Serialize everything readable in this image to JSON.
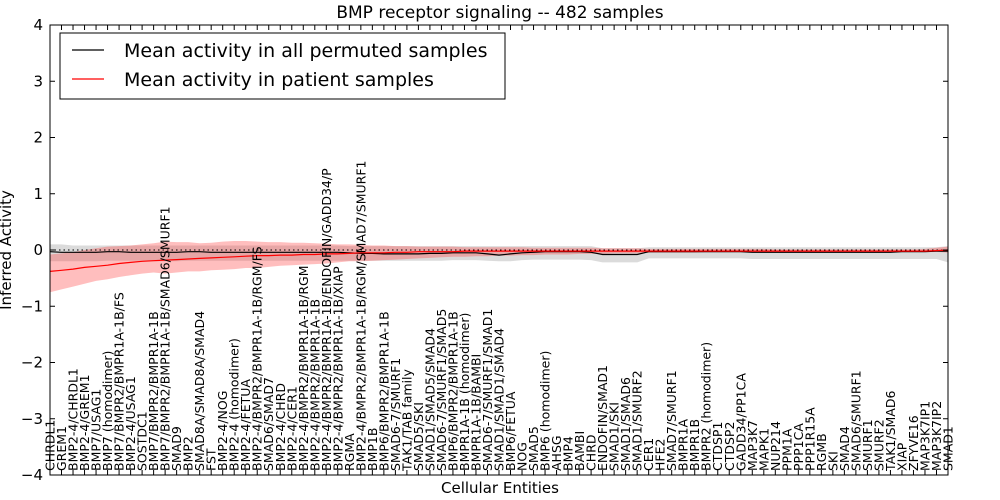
{
  "chart_data": {
    "type": "line",
    "title": "BMP receptor signaling -- 482 samples",
    "xlabel": "Cellular Entities",
    "ylabel": "Inferred Activity",
    "ylim": [
      -4,
      4
    ],
    "yticks": [
      -4,
      -3,
      -2,
      -1,
      0,
      1,
      2,
      3,
      4
    ],
    "legend_position": "top-left",
    "categories": [
      "CHRDL1",
      "GREM1",
      "BMP2-4/CHRDL1",
      "BMP2-4/GREM1",
      "BMP7/USAG1",
      "BMP7 (homodimer)",
      "BMP7/BMPR2/BMPR1A-1B/FS",
      "BMP2-4/USAG1",
      "SOSTDC1",
      "BMP7/BMPR2/BMPR1A-1B",
      "BMP7/BMPR2/BMPR1A-1B/SMAD6/SMURF1",
      "SMAD9",
      "BMP2",
      "SMAD8A/SMAD8A/SMAD4",
      "FST",
      "BMP2-4/NOG",
      "BMP2-4 (homodimer)",
      "BMP2-4/FETUA",
      "BMP2-4/BMPR2/BMPR1A-1B/RGM/FS",
      "SMAD6/SMAD7",
      "BMP2-4/CHRD",
      "BMP2-4/CER1",
      "BMP2-4/BMPR2/BMPR1A-1B/RGM",
      "BMP2-4/BMPR2/BMPR1A-1B",
      "BMP2-4/BMPR2/BMPR1A-1B/ENDOFIN/GADD34/P",
      "BMP2-4/BMPR2/BMPR1A-1B/XIAP",
      "RGMA",
      "BMP2-4/BMPR2/BMPR1A-1B/RGM/SMAD7/SMURF1",
      "BMP1B",
      "BMP6/BMPR2/BMPR1A-1B",
      "SMAD6-7/SMURF1",
      "TAK1/TAB family",
      "SMAD5/SKI",
      "SMAD1/SMAD5/SMAD4",
      "SMAD6-7/SMURF1/SMAD5",
      "BMP6/BMPR2/BMPR1A-1B",
      "BMPR1A-1B (homodimer)",
      "BMPR1A-1B/BAMBI",
      "SMAD6-7/SMURF1/SMAD1",
      "SMAD1/SMAD1/SMAD4",
      "BMP6/FETUA",
      "NOG",
      "SMAD5",
      "BMP6 (homodimer)",
      "AHSG",
      "BMP4",
      "BAMBI",
      "CHRD",
      "ENDOFIN/SMAD1",
      "SMAD1/SKI",
      "SMAD1/SMAD6",
      "SMAD1/SMURF2",
      "CER1",
      "HFE2",
      "SMAD7/SMURF1",
      "BMPR1A",
      "BMPR1B",
      "BMPR2 (homodimer)",
      "CTDSP1",
      "CTDSP2",
      "GADD34/PP1CA",
      "MAP3K7",
      "MAPK1",
      "NUP214",
      "PPM1A",
      "PPP1CA",
      "PPP1R15A",
      "RGMB",
      "SKI",
      "SMAD4",
      "SMAD6/SMURF1",
      "SMURF1",
      "SMURF2",
      "TAK1/SMAD6",
      "XIAP",
      "ZFYVE16",
      "MAP3K7IP1",
      "MAP3K7IP2",
      "SMAD1"
    ],
    "series": [
      {
        "name": "Mean activity in all permuted samples",
        "color": "#000000",
        "values": [
          -0.03,
          -0.04,
          -0.04,
          -0.04,
          -0.04,
          -0.03,
          -0.03,
          -0.04,
          -0.04,
          -0.04,
          -0.04,
          -0.04,
          -0.03,
          -0.03,
          -0.04,
          -0.04,
          -0.04,
          -0.04,
          -0.04,
          -0.04,
          -0.04,
          -0.04,
          -0.04,
          -0.04,
          -0.04,
          -0.04,
          -0.05,
          -0.06,
          -0.06,
          -0.07,
          -0.07,
          -0.07,
          -0.07,
          -0.06,
          -0.06,
          -0.05,
          -0.05,
          -0.05,
          -0.07,
          -0.09,
          -0.07,
          -0.05,
          -0.04,
          -0.03,
          -0.03,
          -0.03,
          -0.03,
          -0.04,
          -0.08,
          -0.08,
          -0.08,
          -0.08,
          -0.03,
          -0.03,
          -0.03,
          -0.03,
          -0.03,
          -0.03,
          -0.03,
          -0.03,
          -0.03,
          -0.04,
          -0.04,
          -0.04,
          -0.04,
          -0.04,
          -0.04,
          -0.04,
          -0.04,
          -0.04,
          -0.04,
          -0.04,
          -0.04,
          -0.04,
          -0.03,
          -0.03,
          -0.03,
          -0.02,
          -0.02
        ],
        "band": [
          [
            -0.2,
            0.1
          ],
          [
            -0.2,
            0.1
          ],
          [
            -0.2,
            0.08
          ],
          [
            -0.2,
            0.08
          ],
          [
            -0.2,
            0.08
          ],
          [
            -0.19,
            0.08
          ],
          [
            -0.19,
            0.08
          ],
          [
            -0.19,
            0.08
          ],
          [
            -0.19,
            0.08
          ],
          [
            -0.2,
            0.08
          ],
          [
            -0.2,
            0.08
          ],
          [
            -0.2,
            0.08
          ],
          [
            -0.19,
            0.08
          ],
          [
            -0.19,
            0.08
          ],
          [
            -0.19,
            0.08
          ],
          [
            -0.19,
            0.08
          ],
          [
            -0.19,
            0.08
          ],
          [
            -0.19,
            0.08
          ],
          [
            -0.19,
            0.08
          ],
          [
            -0.19,
            0.08
          ],
          [
            -0.19,
            0.08
          ],
          [
            -0.19,
            0.08
          ],
          [
            -0.19,
            0.08
          ],
          [
            -0.19,
            0.08
          ],
          [
            -0.19,
            0.08
          ],
          [
            -0.19,
            0.08
          ],
          [
            -0.19,
            0.07
          ],
          [
            -0.19,
            0.07
          ],
          [
            -0.19,
            0.07
          ],
          [
            -0.19,
            0.07
          ],
          [
            -0.19,
            0.07
          ],
          [
            -0.19,
            0.07
          ],
          [
            -0.19,
            0.07
          ],
          [
            -0.19,
            0.07
          ],
          [
            -0.19,
            0.07
          ],
          [
            -0.18,
            0.07
          ],
          [
            -0.18,
            0.07
          ],
          [
            -0.18,
            0.07
          ],
          [
            -0.19,
            0.07
          ],
          [
            -0.2,
            0.07
          ],
          [
            -0.2,
            0.07
          ],
          [
            -0.18,
            0.07
          ],
          [
            -0.17,
            0.07
          ],
          [
            -0.17,
            0.07
          ],
          [
            -0.17,
            0.07
          ],
          [
            -0.17,
            0.07
          ],
          [
            -0.17,
            0.07
          ],
          [
            -0.18,
            0.07
          ],
          [
            -0.22,
            0.03
          ],
          [
            -0.22,
            0.03
          ],
          [
            -0.22,
            0.03
          ],
          [
            -0.22,
            0.03
          ],
          [
            -0.15,
            0.05
          ],
          [
            -0.15,
            0.05
          ],
          [
            -0.15,
            0.05
          ],
          [
            -0.15,
            0.05
          ],
          [
            -0.15,
            0.05
          ],
          [
            -0.15,
            0.05
          ],
          [
            -0.15,
            0.05
          ],
          [
            -0.15,
            0.05
          ],
          [
            -0.15,
            0.05
          ],
          [
            -0.16,
            0.05
          ],
          [
            -0.16,
            0.05
          ],
          [
            -0.16,
            0.05
          ],
          [
            -0.16,
            0.05
          ],
          [
            -0.16,
            0.05
          ],
          [
            -0.16,
            0.05
          ],
          [
            -0.16,
            0.05
          ],
          [
            -0.16,
            0.05
          ],
          [
            -0.16,
            0.05
          ],
          [
            -0.16,
            0.05
          ],
          [
            -0.16,
            0.05
          ],
          [
            -0.16,
            0.05
          ],
          [
            -0.16,
            0.05
          ],
          [
            -0.16,
            0.05
          ],
          [
            -0.16,
            0.05
          ],
          [
            -0.16,
            0.05
          ],
          [
            -0.16,
            0.05
          ],
          [
            -0.22,
            0.07
          ]
        ]
      },
      {
        "name": "Mean activity in patient samples",
        "color": "#ff0000",
        "values": [
          -0.38,
          -0.36,
          -0.34,
          -0.31,
          -0.29,
          -0.27,
          -0.24,
          -0.22,
          -0.2,
          -0.19,
          -0.18,
          -0.17,
          -0.16,
          -0.15,
          -0.14,
          -0.13,
          -0.12,
          -0.11,
          -0.1,
          -0.1,
          -0.09,
          -0.09,
          -0.08,
          -0.08,
          -0.07,
          -0.07,
          -0.06,
          -0.05,
          -0.05,
          -0.05,
          -0.04,
          -0.04,
          -0.03,
          -0.03,
          -0.03,
          -0.03,
          -0.02,
          -0.02,
          -0.02,
          -0.02,
          -0.02,
          -0.02,
          -0.02,
          -0.02,
          -0.02,
          -0.02,
          -0.02,
          -0.02,
          -0.02,
          -0.02,
          -0.02,
          -0.02,
          -0.02,
          -0.02,
          -0.02,
          -0.02,
          -0.02,
          -0.02,
          -0.02,
          -0.02,
          -0.02,
          -0.02,
          -0.02,
          -0.02,
          -0.02,
          -0.02,
          -0.02,
          -0.02,
          -0.02,
          -0.02,
          -0.02,
          -0.02,
          -0.02,
          -0.02,
          -0.02,
          -0.02,
          -0.02,
          -0.01,
          0.0
        ],
        "band": [
          [
            -0.75,
            -0.08
          ],
          [
            -0.7,
            -0.06
          ],
          [
            -0.65,
            -0.04
          ],
          [
            -0.6,
            0.0
          ],
          [
            -0.55,
            0.03
          ],
          [
            -0.52,
            0.06
          ],
          [
            -0.48,
            0.07
          ],
          [
            -0.45,
            0.08
          ],
          [
            -0.42,
            0.1
          ],
          [
            -0.4,
            0.12
          ],
          [
            -0.42,
            0.15
          ],
          [
            -0.4,
            0.14
          ],
          [
            -0.38,
            0.14
          ],
          [
            -0.38,
            0.12
          ],
          [
            -0.36,
            0.13
          ],
          [
            -0.35,
            0.15
          ],
          [
            -0.34,
            0.16
          ],
          [
            -0.32,
            0.16
          ],
          [
            -0.32,
            0.15
          ],
          [
            -0.3,
            0.14
          ],
          [
            -0.28,
            0.14
          ],
          [
            -0.27,
            0.13
          ],
          [
            -0.26,
            0.13
          ],
          [
            -0.25,
            0.12
          ],
          [
            -0.24,
            0.11
          ],
          [
            -0.22,
            0.1
          ],
          [
            -0.2,
            0.1
          ],
          [
            -0.2,
            0.09
          ],
          [
            -0.19,
            0.08
          ],
          [
            -0.18,
            0.08
          ],
          [
            -0.17,
            0.07
          ],
          [
            -0.16,
            0.07
          ],
          [
            -0.15,
            0.06
          ],
          [
            -0.14,
            0.06
          ],
          [
            -0.13,
            0.06
          ],
          [
            -0.12,
            0.06
          ],
          [
            -0.12,
            0.05
          ],
          [
            -0.11,
            0.05
          ],
          [
            -0.11,
            0.05
          ],
          [
            -0.1,
            0.05
          ],
          [
            -0.1,
            0.05
          ],
          [
            -0.09,
            0.05
          ],
          [
            -0.09,
            0.04
          ],
          [
            -0.08,
            0.04
          ],
          [
            -0.08,
            0.04
          ],
          [
            -0.08,
            0.04
          ],
          [
            -0.07,
            0.04
          ],
          [
            -0.07,
            0.04
          ],
          [
            -0.07,
            0.03
          ],
          [
            -0.06,
            0.03
          ],
          [
            -0.06,
            0.03
          ],
          [
            -0.06,
            0.03
          ],
          [
            -0.05,
            0.02
          ],
          [
            -0.05,
            0.02
          ],
          [
            -0.05,
            0.02
          ],
          [
            -0.05,
            0.02
          ],
          [
            -0.05,
            0.02
          ],
          [
            -0.04,
            0.02
          ],
          [
            -0.04,
            0.02
          ],
          [
            -0.04,
            0.02
          ],
          [
            -0.04,
            0.02
          ],
          [
            -0.04,
            0.02
          ],
          [
            -0.04,
            0.02
          ],
          [
            -0.04,
            0.01
          ],
          [
            -0.04,
            0.01
          ],
          [
            -0.04,
            0.01
          ],
          [
            -0.04,
            0.01
          ],
          [
            -0.04,
            0.01
          ],
          [
            -0.04,
            0.01
          ],
          [
            -0.04,
            0.01
          ],
          [
            -0.04,
            0.01
          ],
          [
            -0.04,
            0.01
          ],
          [
            -0.04,
            0.01
          ],
          [
            -0.04,
            0.01
          ],
          [
            -0.03,
            0.01
          ],
          [
            -0.03,
            0.01
          ],
          [
            -0.03,
            0.02
          ],
          [
            -0.03,
            0.04
          ],
          [
            -0.05,
            0.06
          ]
        ]
      }
    ]
  }
}
